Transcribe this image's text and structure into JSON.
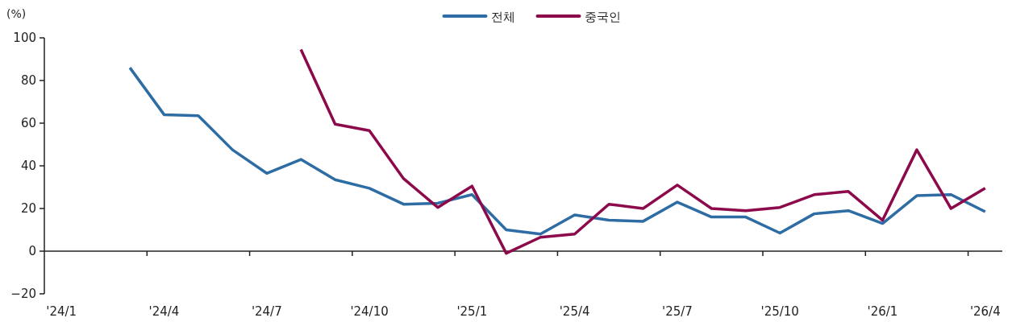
{
  "chart_data": {
    "type": "line",
    "ylabel": "(%)",
    "legend": "top",
    "categories": [
      "'24/1",
      null,
      null,
      "'24/4",
      null,
      null,
      "'24/7",
      null,
      null,
      "'24/10",
      null,
      null,
      "'25/1",
      null,
      null,
      "'25/4",
      null,
      null,
      "'25/7",
      null,
      null,
      "'25/10",
      null,
      null,
      "'26/1",
      null,
      null,
      "'26/4"
    ],
    "ylim": [
      -20,
      100
    ],
    "yticks": [
      -20,
      0,
      20,
      40,
      60,
      80,
      100
    ],
    "marker": "none",
    "line_style": "solid",
    "series": [
      {
        "name": "전체",
        "color": "#2e6da4",
        "values": [
          null,
          null,
          86,
          64,
          63.5,
          47.5,
          36.5,
          43,
          33.5,
          29.5,
          22,
          22.5,
          26.5,
          10,
          8,
          17,
          14.5,
          14,
          23,
          16,
          16,
          8.5,
          17.5,
          19,
          13,
          26,
          26.5,
          18.5
        ]
      },
      {
        "name": "중국인",
        "color": "#8c0a4b",
        "values": [
          null,
          null,
          null,
          null,
          null,
          null,
          null,
          94.5,
          59.5,
          56.5,
          34,
          20.5,
          30.5,
          -1,
          6.5,
          8,
          22,
          20,
          31,
          20,
          19,
          20.5,
          26.5,
          28,
          14.5,
          47.5,
          20,
          29.5
        ]
      }
    ]
  }
}
